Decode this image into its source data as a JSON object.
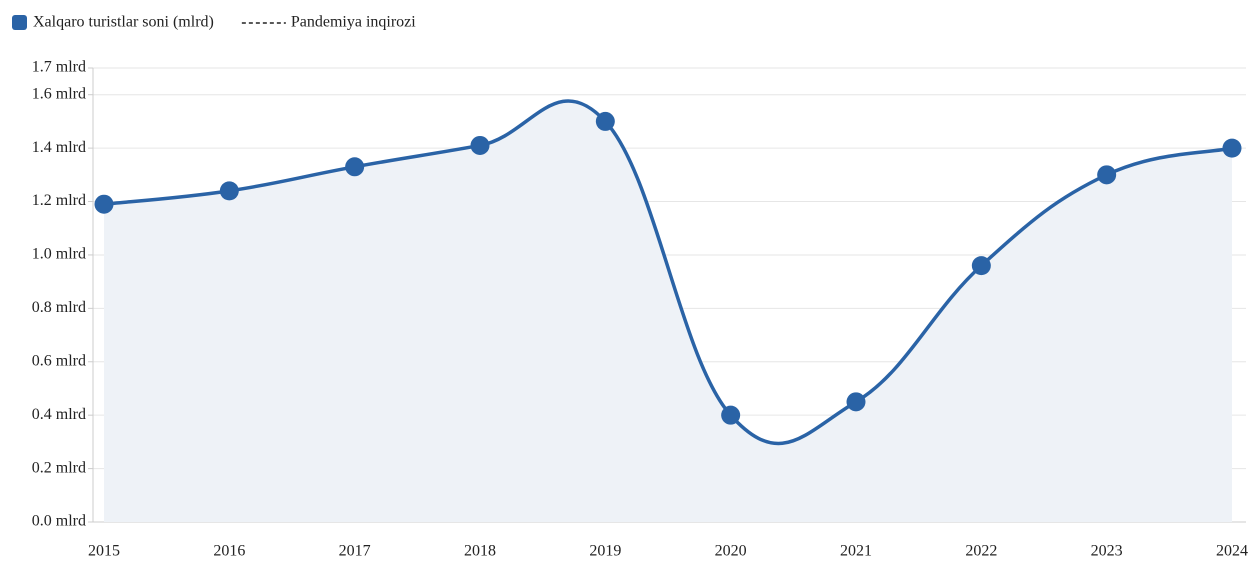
{
  "chart_data": {
    "type": "line",
    "categories": [
      "2015",
      "2016",
      "2017",
      "2018",
      "2019",
      "2020",
      "2021",
      "2022",
      "2023",
      "2024"
    ],
    "series": [
      {
        "name": "Xalqaro turistlar soni (mlrd)",
        "color": "#2a63a6",
        "fill": "#eef2f7",
        "values": [
          1.19,
          1.24,
          1.33,
          1.41,
          1.5,
          0.4,
          0.45,
          0.96,
          1.3,
          1.4
        ]
      }
    ],
    "legend_extra": [
      {
        "name": "Pandemiya inqirozi",
        "color": "#222222",
        "dash": true
      }
    ],
    "ylim": [
      0,
      1.7
    ],
    "yticks": [
      {
        "value": 0,
        "label": "0.0 mlrd"
      },
      {
        "value": 0.2,
        "label": "0.2 mlrd"
      },
      {
        "value": 0.4,
        "label": "0.4 mlrd"
      },
      {
        "value": 0.6,
        "label": "0.6 mlrd"
      },
      {
        "value": 0.8,
        "label": "0.8 mlrd"
      },
      {
        "value": 1.0,
        "label": "1.0 mlrd"
      },
      {
        "value": 1.2,
        "label": "1.2 mlrd"
      },
      {
        "value": 1.4,
        "label": "1.4 mlrd"
      },
      {
        "value": 1.6,
        "label": "1.6 mlrd"
      },
      {
        "value": 1.7,
        "label": "1.7 mlrd"
      }
    ],
    "grid": true,
    "legend": "top-left"
  }
}
